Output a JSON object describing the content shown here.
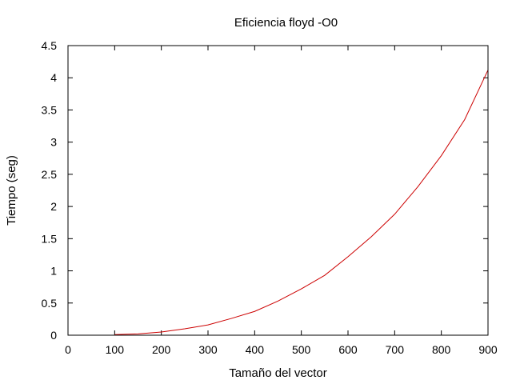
{
  "chart_data": {
    "type": "line",
    "title": "Eficiencia floyd -O0",
    "xlabel": "Tamaño del vector",
    "ylabel": "Tiempo (seg)",
    "xlim": [
      0,
      900
    ],
    "ylim": [
      0,
      4.5
    ],
    "x_ticks": [
      0,
      100,
      200,
      300,
      400,
      500,
      600,
      700,
      800,
      900
    ],
    "y_ticks": [
      0,
      0.5,
      1,
      1.5,
      2,
      2.5,
      3,
      3.5,
      4,
      4.5
    ],
    "x_tick_labels": [
      "0",
      "100",
      "200",
      "300",
      "400",
      "500",
      "600",
      "700",
      "800",
      "900"
    ],
    "y_tick_labels": [
      "0",
      "0.5",
      "1",
      "1.5",
      "2",
      "2.5",
      "3",
      "3.5",
      "4",
      "4.5"
    ],
    "grid": false,
    "series": [
      {
        "color": "#cc0000",
        "x": [
          100,
          150,
          200,
          250,
          300,
          350,
          400,
          450,
          500,
          550,
          600,
          650,
          700,
          750,
          800,
          850,
          900
        ],
        "y": [
          0.01,
          0.02,
          0.05,
          0.1,
          0.16,
          0.26,
          0.37,
          0.53,
          0.72,
          0.93,
          1.22,
          1.53,
          1.88,
          2.31,
          2.79,
          3.35,
          4.12
        ]
      }
    ]
  }
}
